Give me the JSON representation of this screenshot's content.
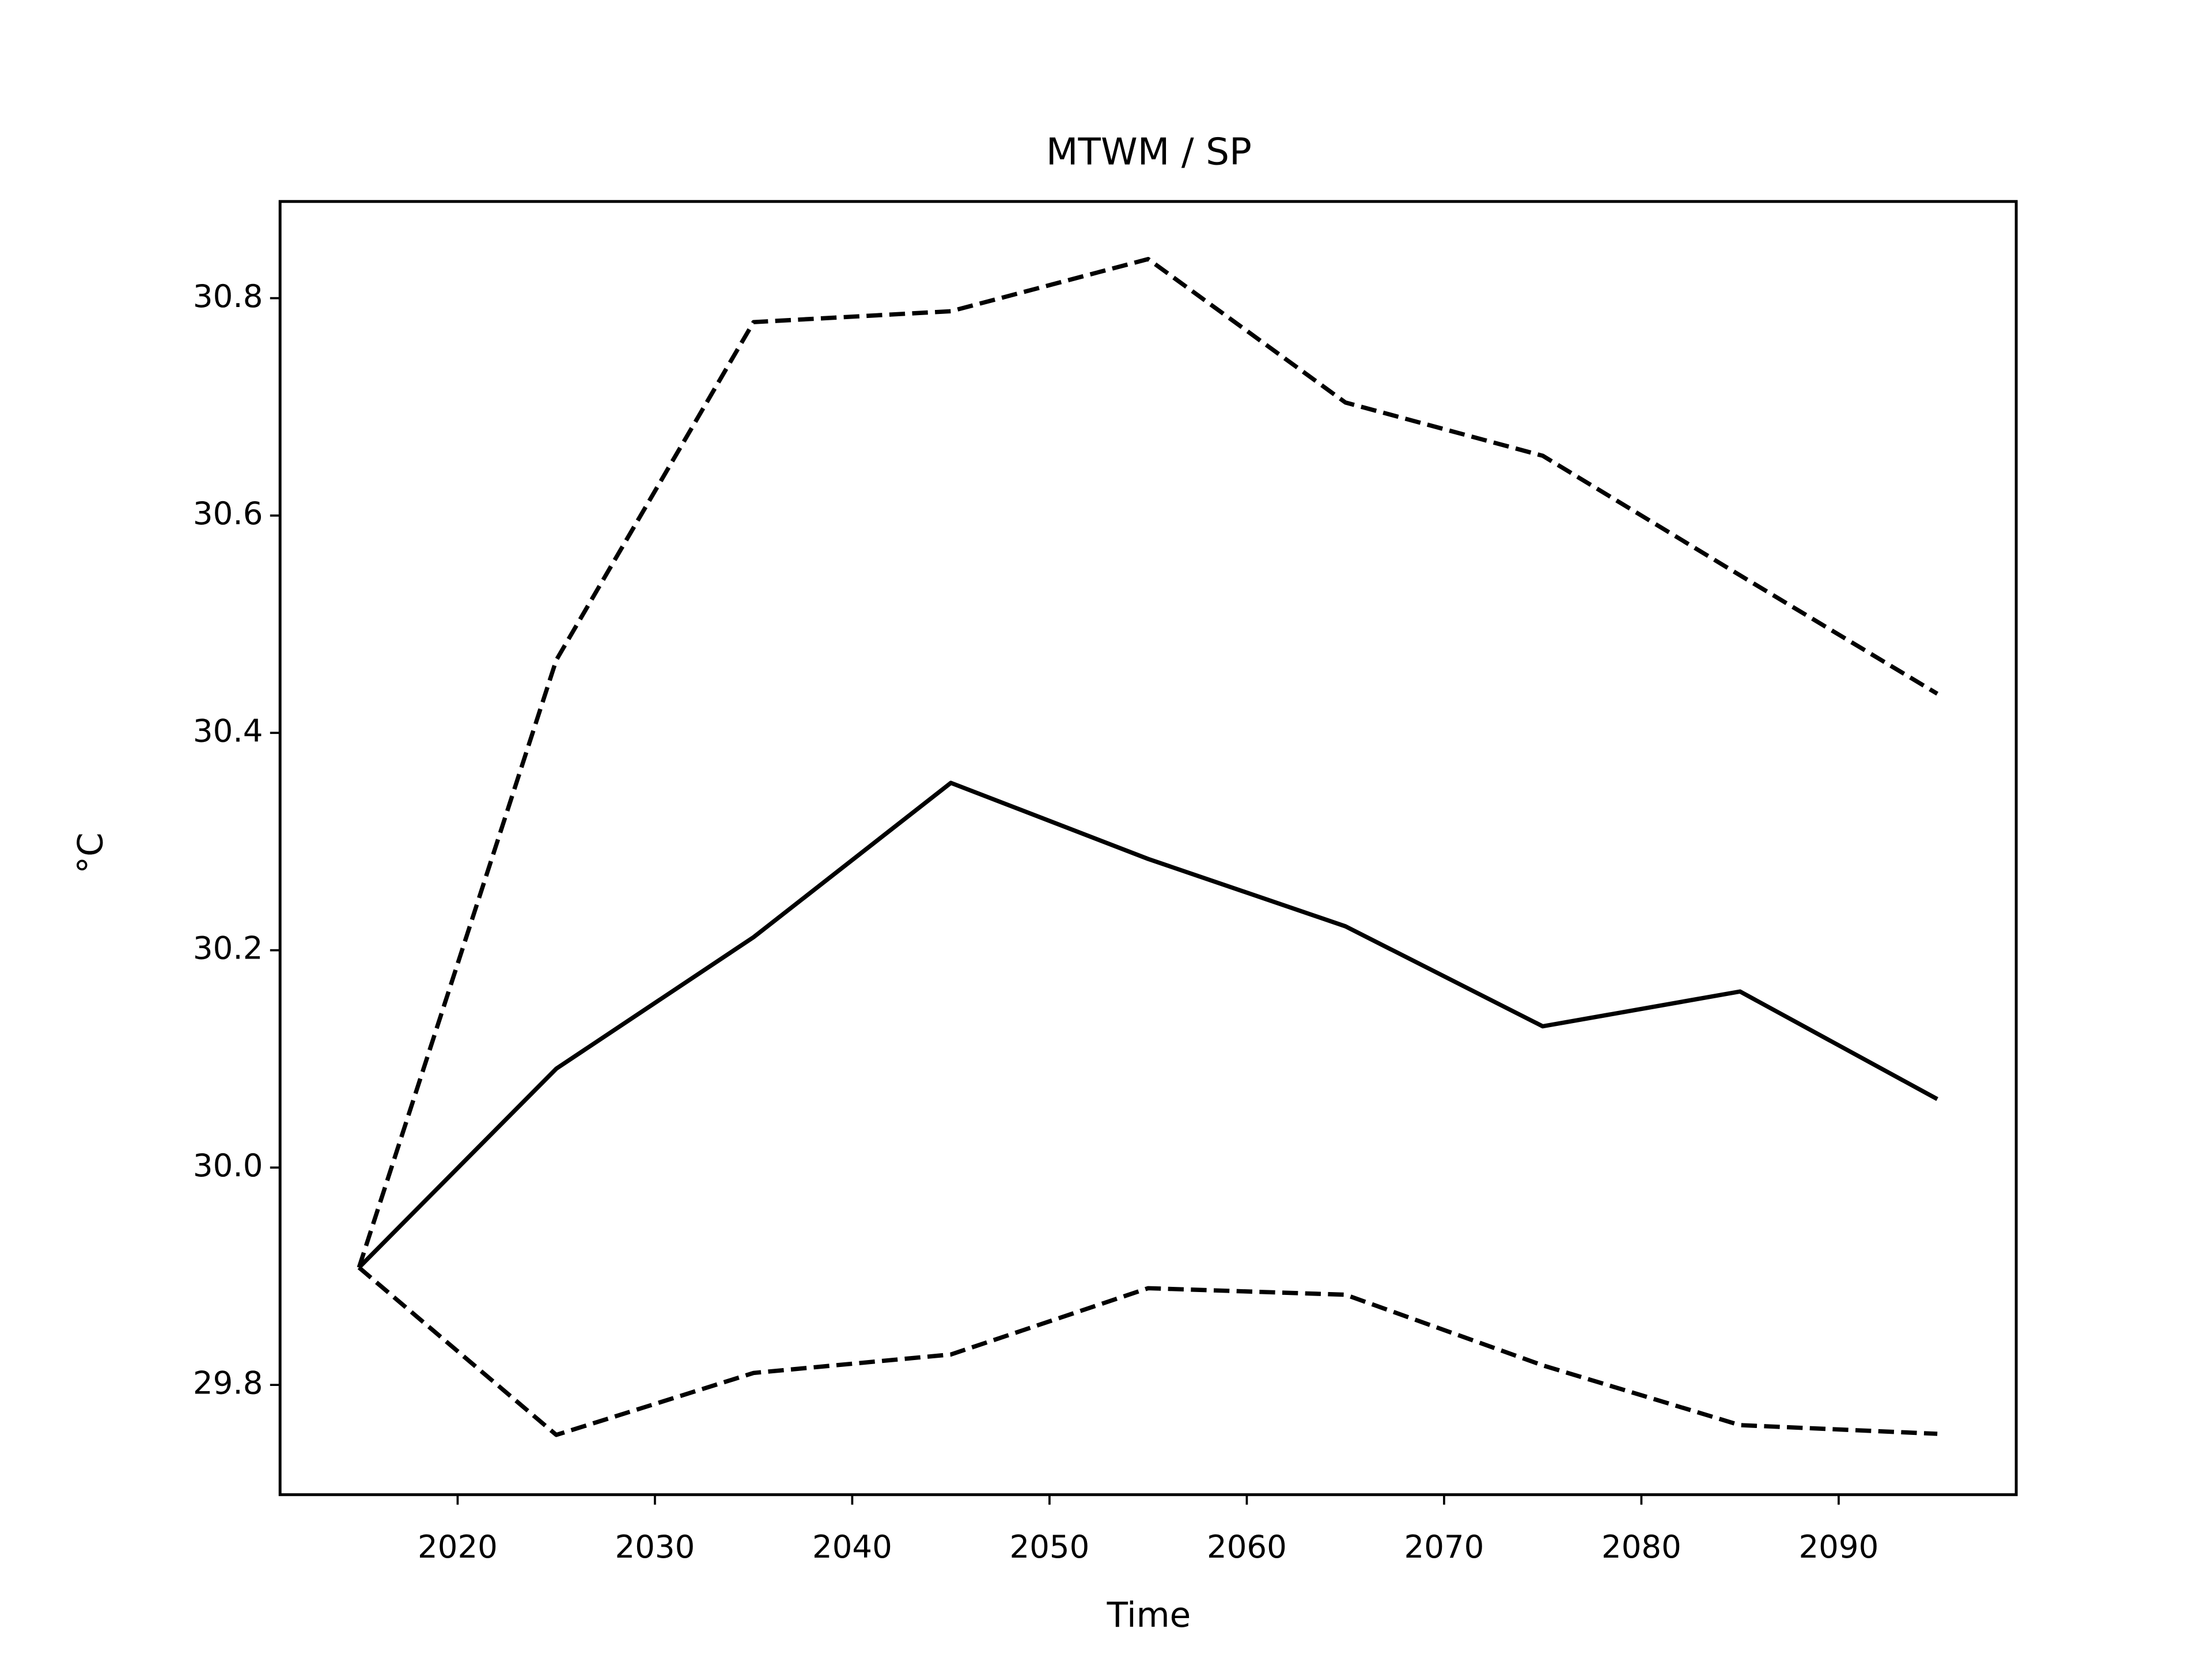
{
  "chart_data": {
    "type": "line",
    "title": "MTWM / SP",
    "xlabel": "Time",
    "ylabel": "°C",
    "x": [
      2015,
      2025,
      2035,
      2045,
      2055,
      2065,
      2075,
      2085,
      2095
    ],
    "series": [
      {
        "color": "#000000",
        "dashed": false,
        "values": [
          29.908,
          30.091,
          30.212,
          30.354,
          30.284,
          30.222,
          30.13,
          30.162,
          30.063
        ]
      },
      {
        "color": "#000000",
        "dashed": true,
        "values": [
          29.908,
          30.467,
          30.778,
          30.788,
          30.836,
          30.704,
          30.655,
          30.545,
          30.436
        ]
      },
      {
        "color": "#000000",
        "dashed": true,
        "values": [
          29.908,
          29.754,
          29.811,
          29.828,
          29.889,
          29.883,
          29.818,
          29.763,
          29.755
        ]
      }
    ],
    "xlim": [
      2011,
      2099
    ],
    "xticks": [
      2020,
      2030,
      2040,
      2050,
      2060,
      2070,
      2080,
      2090
    ],
    "ylim": [
      29.699,
      30.889
    ],
    "yticks": [
      29.8,
      {
        "value": 30,
        "label": "30.0"
      },
      30.2,
      30.4,
      30.6,
      30.8
    ],
    "grid": false
  }
}
